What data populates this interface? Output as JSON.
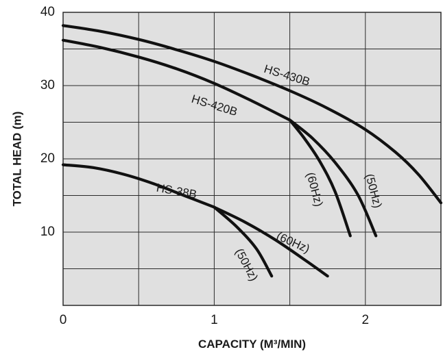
{
  "chart_data": {
    "type": "line",
    "xlabel": "CAPACITY (M³/MIN)",
    "ylabel": "TOTAL HEAD (m)",
    "xlim": [
      0,
      2.5
    ],
    "ylim": [
      0,
      40
    ],
    "x_ticks": [
      "0",
      "1",
      "2"
    ],
    "y_ticks": [
      "10",
      "20",
      "30",
      "40"
    ],
    "x_grid_step": 0.5,
    "y_grid_step": 5,
    "grid": true,
    "background": "#e0e0e0",
    "series": [
      {
        "name": "HS-430B",
        "x": [
          0,
          0.25,
          0.5,
          0.75,
          1.0,
          1.25,
          1.5,
          1.75,
          2.0,
          2.2,
          2.35,
          2.5
        ],
        "y": [
          38.2,
          37.4,
          36.3,
          34.9,
          33.3,
          31.4,
          29.3,
          26.9,
          24.0,
          20.9,
          17.9,
          14.0
        ]
      },
      {
        "name": "HS-420B",
        "x": [
          0,
          0.25,
          0.5,
          0.75,
          1.0,
          1.25,
          1.5
        ],
        "y": [
          36.2,
          35.2,
          33.9,
          32.3,
          30.3,
          27.9,
          25.3
        ]
      },
      {
        "name": "(60Hz)",
        "x": [
          1.5,
          1.6,
          1.7,
          1.8,
          1.9
        ],
        "y": [
          25.3,
          22.7,
          19.6,
          15.5,
          9.5
        ]
      },
      {
        "name": "(50Hz)",
        "x": [
          1.5,
          1.65,
          1.8,
          1.95,
          2.07
        ],
        "y": [
          25.3,
          22.8,
          19.5,
          15.1,
          9.5
        ]
      },
      {
        "name": "HS-38B",
        "x": [
          0,
          0.2,
          0.4,
          0.6,
          0.8,
          1.0
        ],
        "y": [
          19.2,
          18.8,
          17.9,
          16.6,
          15.0,
          13.4
        ]
      },
      {
        "name": "(60Hz)",
        "x": [
          1.0,
          1.2,
          1.4,
          1.6,
          1.75
        ],
        "y": [
          13.4,
          11.4,
          9.0,
          6.2,
          4.0
        ]
      },
      {
        "name": "(50Hz)",
        "x": [
          1.0,
          1.15,
          1.28,
          1.38
        ],
        "y": [
          13.4,
          10.7,
          7.7,
          4.0
        ]
      }
    ],
    "labels": [
      {
        "text": "HS-430B",
        "x": 1.48,
        "y": 31.3,
        "rotate": 17
      },
      {
        "text": "HS-420B",
        "x": 1.0,
        "y": 27.2,
        "rotate": 17
      },
      {
        "text": "HS-38B",
        "x": 0.75,
        "y": 15.5,
        "rotate": 10
      },
      {
        "text": "(60Hz)",
        "x": 1.66,
        "y": 15.8,
        "rotate": 75
      },
      {
        "text": "(50Hz)",
        "x": 2.05,
        "y": 15.6,
        "rotate": 75
      },
      {
        "text": "(60Hz)",
        "x": 1.52,
        "y": 8.5,
        "rotate": 24
      },
      {
        "text": "(50Hz)",
        "x": 1.21,
        "y": 5.5,
        "rotate": 62
      }
    ]
  }
}
